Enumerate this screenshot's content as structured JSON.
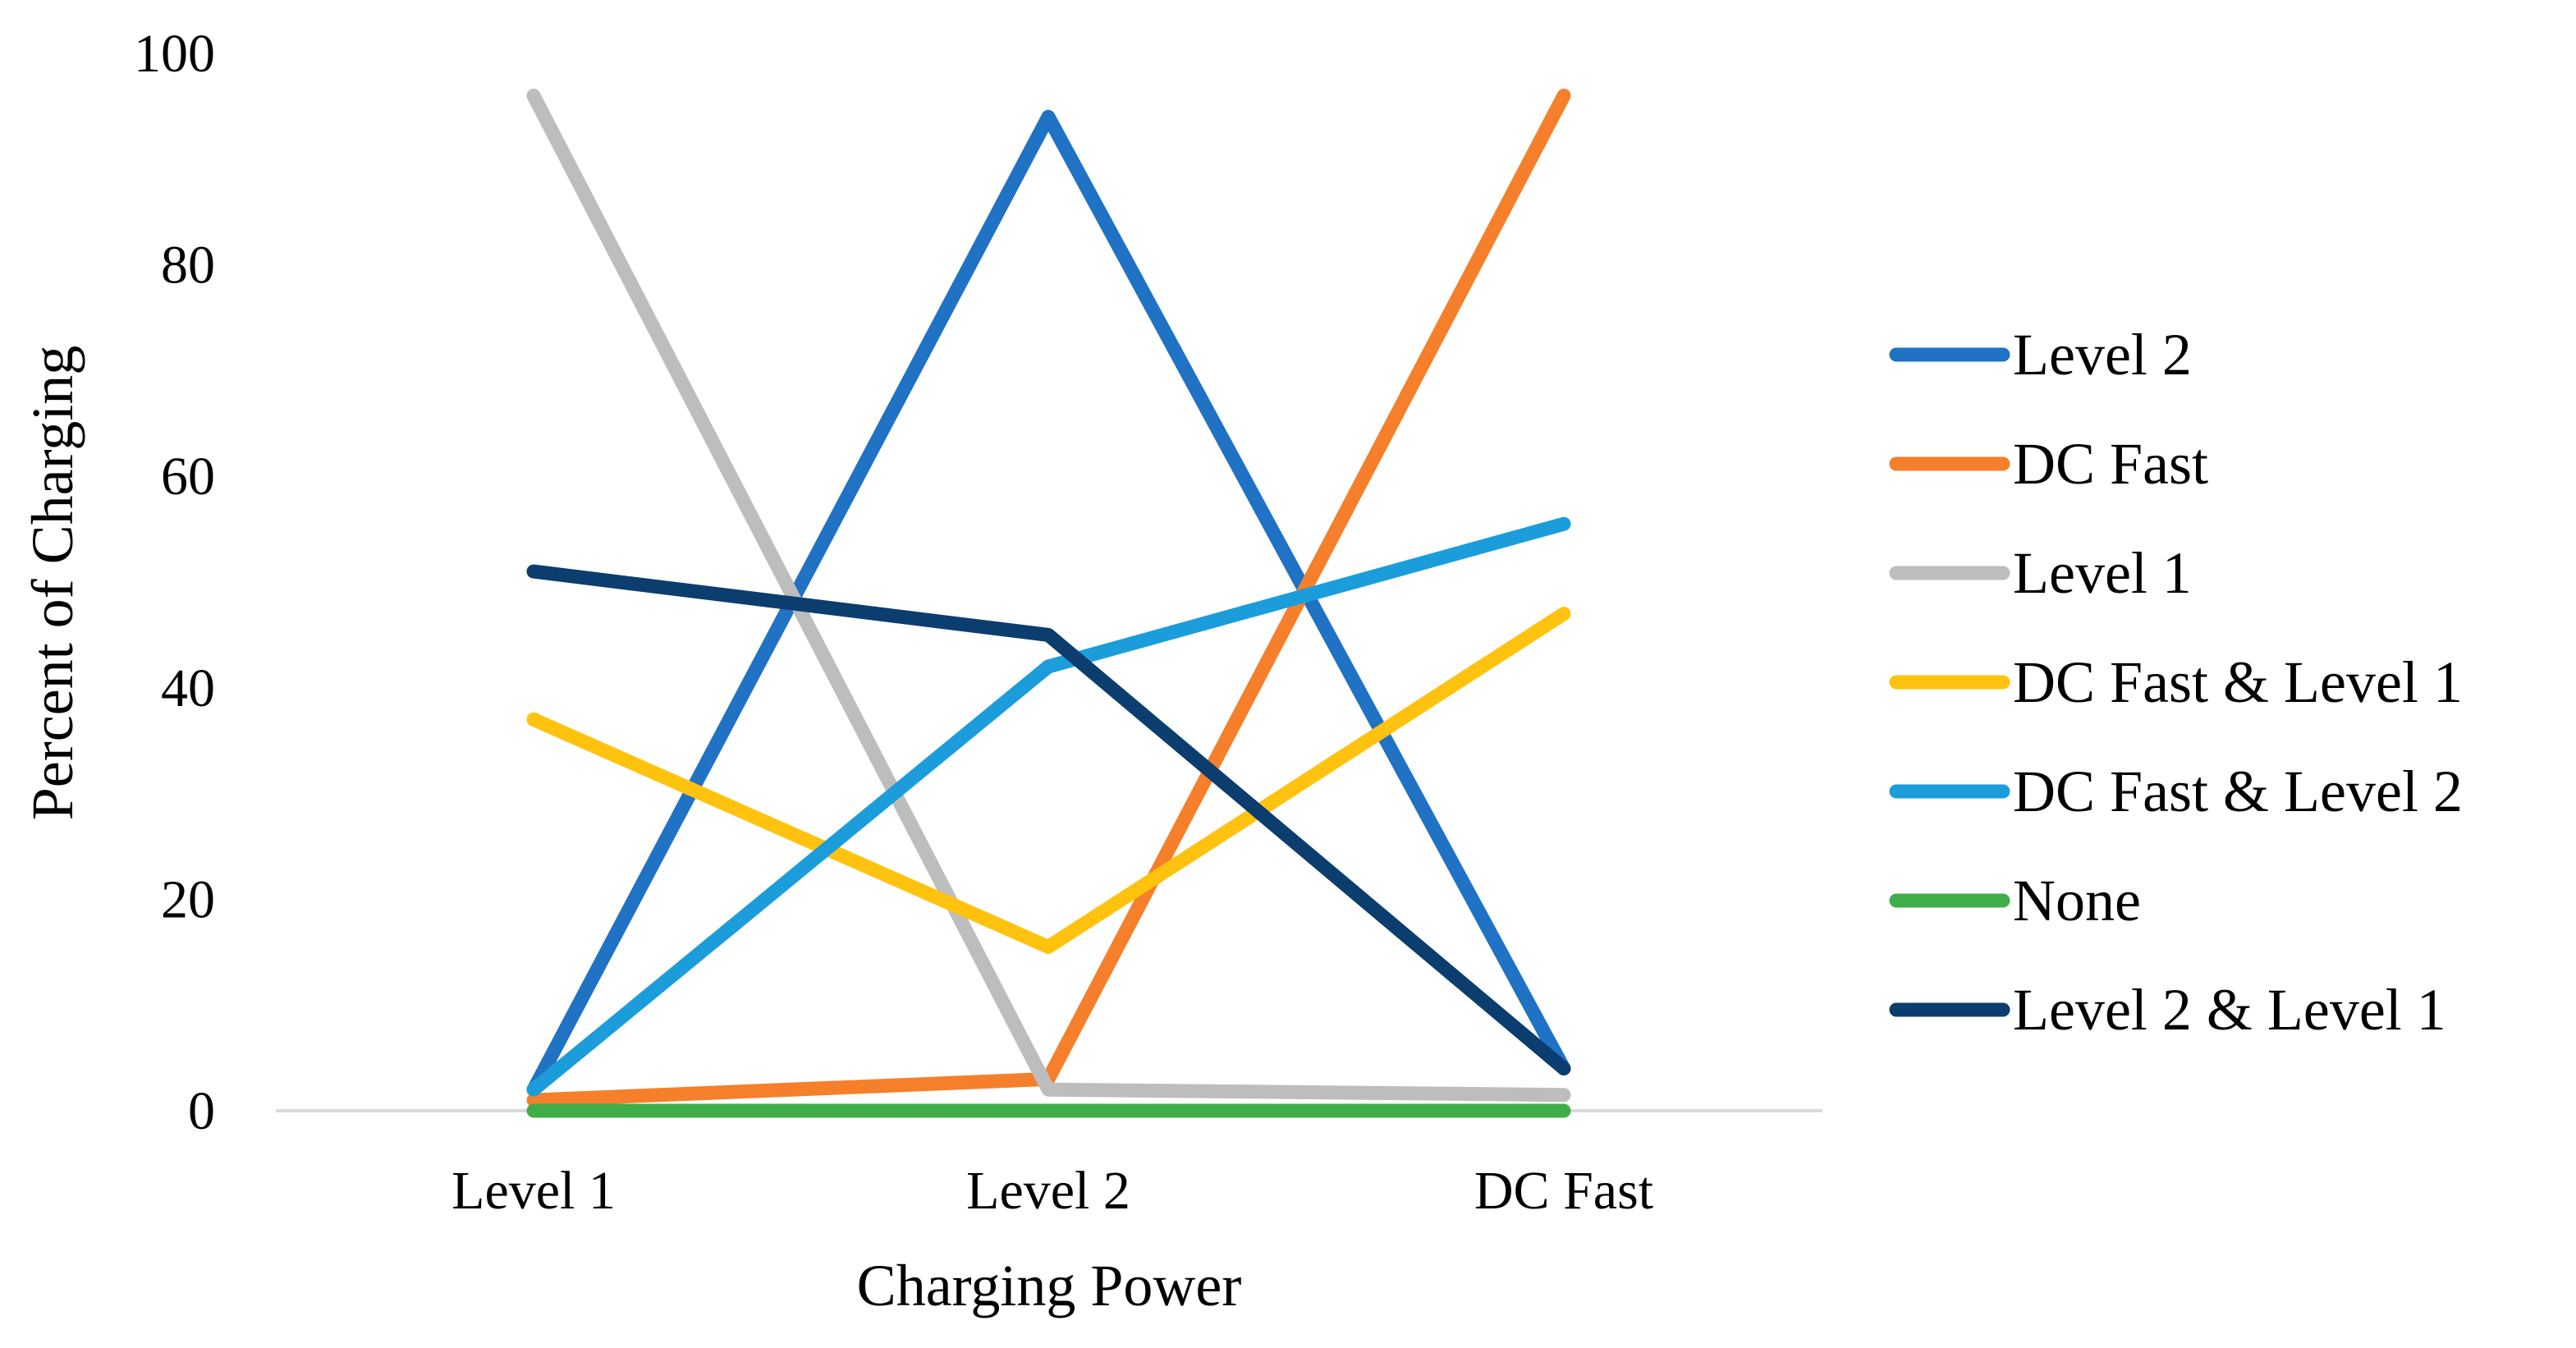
{
  "chart_data": {
    "type": "line",
    "title": "",
    "xlabel": "Charging Power",
    "ylabel": "Percent of Charging",
    "categories": [
      "Level 1",
      "Level 2",
      "DC Fast"
    ],
    "ylim": [
      0,
      100
    ],
    "yticks": [
      0,
      20,
      40,
      60,
      80,
      100
    ],
    "grid": false,
    "legend_position": "right",
    "series": [
      {
        "name": "Level 2",
        "color": "#1f72c4",
        "values": [
          2,
          94,
          4
        ]
      },
      {
        "name": "DC Fast",
        "color": "#f57f2a",
        "values": [
          1,
          3,
          96
        ]
      },
      {
        "name": "Level 1",
        "color": "#bdbdbd",
        "values": [
          96,
          2,
          1.5
        ]
      },
      {
        "name": "DC Fast & Level 1",
        "color": "#ffc20e",
        "values": [
          37,
          15.5,
          47
        ]
      },
      {
        "name": "DC Fast & Level 2",
        "color": "#1b9ddc",
        "values": [
          2,
          42,
          55.5
        ]
      },
      {
        "name": "None",
        "color": "#3fae49",
        "values": [
          0,
          0,
          0
        ]
      },
      {
        "name": "Level 2 & Level 1",
        "color": "#0b3d6e",
        "values": [
          51,
          45,
          4
        ]
      }
    ]
  }
}
